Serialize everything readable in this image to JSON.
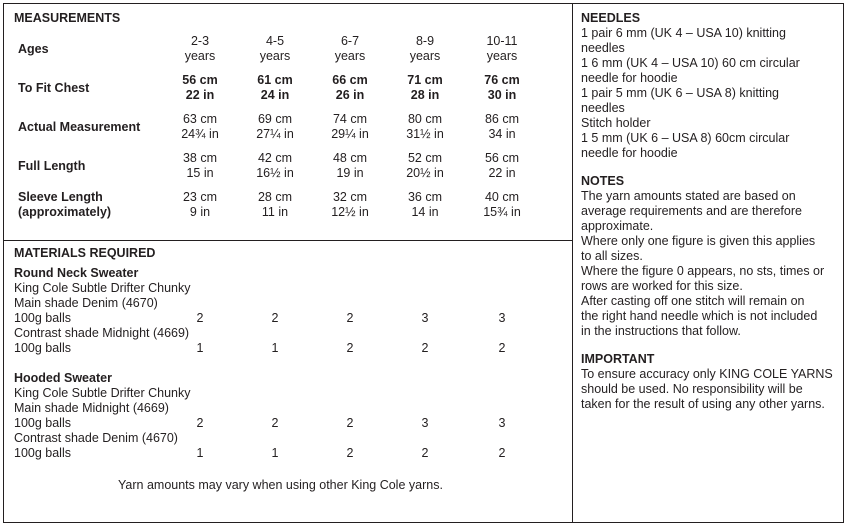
{
  "measurements": {
    "heading": "MEASUREMENTS",
    "ages_label": "Ages",
    "sizes": [
      {
        "top": "2-3",
        "bottom": "years"
      },
      {
        "top": "4-5",
        "bottom": "years"
      },
      {
        "top": "6-7",
        "bottom": "years"
      },
      {
        "top": "8-9",
        "bottom": "years"
      },
      {
        "top": "10-11",
        "bottom": "years"
      }
    ],
    "rows": [
      {
        "label1": "To Fit Chest",
        "label2": "",
        "bold": true,
        "values": [
          [
            "56 cm",
            "22 in"
          ],
          [
            "61 cm",
            "24 in"
          ],
          [
            "66 cm",
            "26 in"
          ],
          [
            "71 cm",
            "28 in"
          ],
          [
            "76 cm",
            "30 in"
          ]
        ]
      },
      {
        "label1": "Actual Measurement",
        "label2": "",
        "bold": false,
        "values": [
          [
            "63 cm",
            "24¾ in"
          ],
          [
            "69 cm",
            "27¼ in"
          ],
          [
            "74 cm",
            "29¼ in"
          ],
          [
            "80 cm",
            "31½ in"
          ],
          [
            "86 cm",
            "34 in"
          ]
        ]
      },
      {
        "label1": "Full Length",
        "label2": "",
        "bold": false,
        "values": [
          [
            "38 cm",
            "15 in"
          ],
          [
            "42 cm",
            "16½ in"
          ],
          [
            "48 cm",
            "19 in"
          ],
          [
            "52 cm",
            "20½ in"
          ],
          [
            "56 cm",
            "22 in"
          ]
        ]
      },
      {
        "label1": "Sleeve Length",
        "label2": "(approximately)",
        "bold": false,
        "values": [
          [
            "23 cm",
            "9 in"
          ],
          [
            "28 cm",
            "11 in"
          ],
          [
            "32 cm",
            "12½ in"
          ],
          [
            "36 cm",
            "14 in"
          ],
          [
            "40 cm",
            "15¾ in"
          ]
        ]
      }
    ]
  },
  "materials": {
    "heading": "MATERIALS REQUIRED",
    "round": {
      "title": "Round Neck Sweater",
      "yarn": "King Cole Subtle Drifter Chunky",
      "main": "Main shade Denim (4670)",
      "main_balls_label": "100g balls",
      "main_balls": [
        "2",
        "2",
        "2",
        "3",
        "3"
      ],
      "contrast": "Contrast shade Midnight (4669)",
      "contrast_balls_label": "100g balls",
      "contrast_balls": [
        "1",
        "1",
        "2",
        "2",
        "2"
      ]
    },
    "hooded": {
      "title": "Hooded Sweater",
      "yarn": "King Cole Subtle Drifter Chunky",
      "main": "Main shade Midnight  (4669)",
      "main_balls_label": "100g balls",
      "main_balls": [
        "2",
        "2",
        "2",
        "3",
        "3"
      ],
      "contrast": "Contrast shade Denim (4670)",
      "contrast_balls_label": "100g balls",
      "contrast_balls": [
        "1",
        "1",
        "2",
        "2",
        "2"
      ]
    },
    "footnote": "Yarn amounts may vary when using other King Cole yarns."
  },
  "needles": {
    "heading": "NEEDLES",
    "lines": [
      "1 pair 6 mm (UK 4 – USA 10) knitting",
      "needles",
      "1 6 mm (UK 4 – USA 10) 60 cm circular",
      "needle for hoodie",
      "1 pair 5 mm (UK 6 – USA 8) knitting",
      "needles",
      "Stitch holder",
      "1 5 mm (UK 6 – USA 8) 60cm circular",
      "needle for hoodie"
    ]
  },
  "notes": {
    "heading": "NOTES",
    "lines": [
      "The yarn amounts stated are based on",
      "average requirements and are therefore",
      "approximate.",
      "Where only one figure is given this applies",
      "to all sizes.",
      "Where the figure 0 appears, no sts, times or",
      "rows are worked for this size.",
      "After casting off one stitch will remain on",
      "the right hand needle which is not included",
      "in the instructions that follow."
    ]
  },
  "important": {
    "heading": "IMPORTANT",
    "lines": [
      "To ensure accuracy only KING COLE YARNS",
      "should be used. No responsibility will be",
      "taken for the result of using any other yarns."
    ]
  }
}
